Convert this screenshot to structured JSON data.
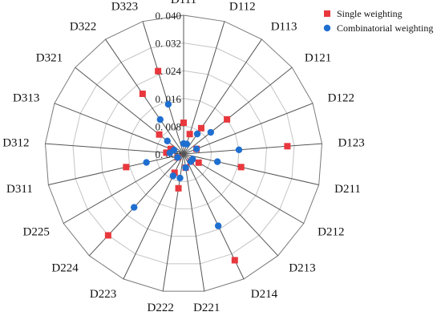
{
  "chart_data": {
    "type": "radar",
    "categories": [
      "D111",
      "D112",
      "D113",
      "D121",
      "D122",
      "D123",
      "D211",
      "D212",
      "D213",
      "D214",
      "D221",
      "D222",
      "D223",
      "D224",
      "D225",
      "D311",
      "D312",
      "D313",
      "D321",
      "D322",
      "D323"
    ],
    "radial_ticks": [
      "0. 000",
      "0. 008",
      "0. 016",
      "0. 024",
      "0. 032",
      "0. 040"
    ],
    "rmax": 0.04,
    "grid": true,
    "legend_position": "top-right",
    "series": [
      {
        "name": "Single weighting",
        "marker": "square",
        "color": "#e8383d",
        "values": [
          0.009,
          0.006,
          0.009,
          0.016,
          0.004,
          0.03,
          0.017,
          0.005,
          0.003,
          0.034,
          0.004,
          0.01,
          0.006,
          0.032,
          0.002,
          0.017,
          0.005,
          0.004,
          0.009,
          0.021,
          0.025
        ]
      },
      {
        "name": "Combinatorial weighting",
        "marker": "circle",
        "color": "#1f6fd1",
        "values": [
          0.003,
          0.003,
          0.007,
          0.01,
          0.004,
          0.016,
          0.01,
          0.003,
          0.003,
          0.023,
          0.004,
          0.007,
          0.007,
          0.021,
          0.002,
          0.011,
          0.004,
          0.003,
          0.006,
          0.012,
          0.015
        ]
      }
    ]
  }
}
